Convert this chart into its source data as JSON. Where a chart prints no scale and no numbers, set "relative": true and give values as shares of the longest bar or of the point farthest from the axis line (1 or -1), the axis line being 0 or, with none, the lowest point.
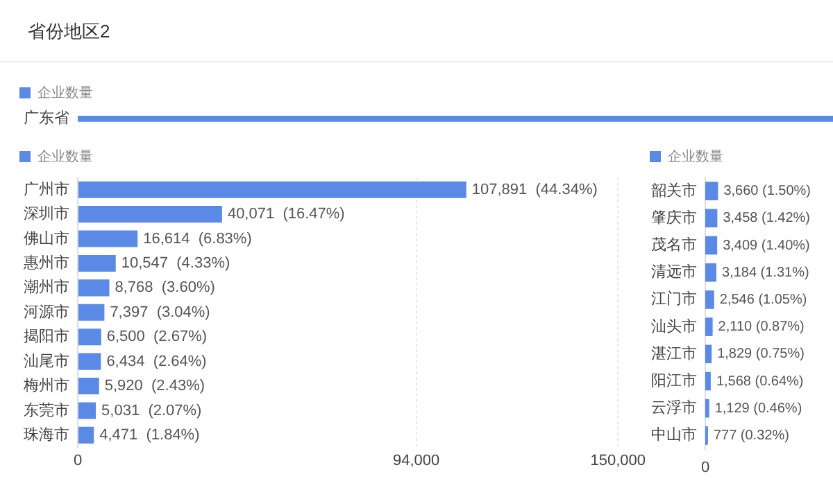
{
  "chart_data": [
    {
      "type": "bar",
      "title": "省份地区2",
      "orientation": "horizontal",
      "relative": true,
      "legend": "top left",
      "categories": [
        "广东省"
      ],
      "series": [
        {
          "name": "企业数量",
          "color": "#5b8ae6",
          "values": [
            1
          ]
        }
      ]
    },
    {
      "type": "bar",
      "orientation": "horizontal",
      "legend": "top left",
      "grid": "x",
      "xlim": [
        0,
        150000
      ],
      "xticks": [
        0,
        {
          "value": 94000,
          "label": "94,000"
        },
        {
          "value": 150000,
          "label": "150,000"
        }
      ],
      "categories": [
        "广州市",
        "深圳市",
        "佛山市",
        "惠州市",
        "潮州市",
        "河源市",
        "揭阳市",
        "汕尾市",
        "梅州市",
        "东莞市",
        "珠海市"
      ],
      "series": [
        {
          "name": "企业数量",
          "color": "#5b8ae6",
          "values": [
            107891,
            40071,
            16614,
            10547,
            8768,
            7397,
            6500,
            6434,
            5920,
            5031,
            4471
          ],
          "value_labels": [
            "107,891  (44.34%)",
            "40,071  (16.47%)",
            "16,614  (6.83%)",
            "10,547  (4.33%)",
            "8,768  (3.60%)",
            "7,397  (3.04%)",
            "6,500  (2.67%)",
            "6,434  (2.64%)",
            "5,920  (2.43%)",
            "5,031  (2.07%)",
            "4,471  (1.84%)"
          ]
        }
      ]
    },
    {
      "type": "bar",
      "orientation": "horizontal",
      "legend": "top left",
      "annotations": [
        "0"
      ],
      "categories": [
        "韶关市",
        "肇庆市",
        "茂名市",
        "清远市",
        "江门市",
        "汕头市",
        "湛江市",
        "阳江市",
        "云浮市",
        "中山市"
      ],
      "series": [
        {
          "name": "企业数量",
          "color": "#5b8ae6",
          "values": [
            3660,
            3458,
            3409,
            3184,
            2546,
            2110,
            1829,
            1568,
            1129,
            777
          ],
          "value_labels": [
            "3,660 (1.50%)",
            "3,458 (1.42%)",
            "3,409 (1.40%)",
            "3,184 (1.31%)",
            "2,546 (1.05%)",
            "2,110 (0.87%)",
            "1,829 (0.75%)",
            "1,568 (0.64%)",
            "1,129 (0.46%)",
            "777 (0.32%)"
          ]
        }
      ]
    }
  ]
}
